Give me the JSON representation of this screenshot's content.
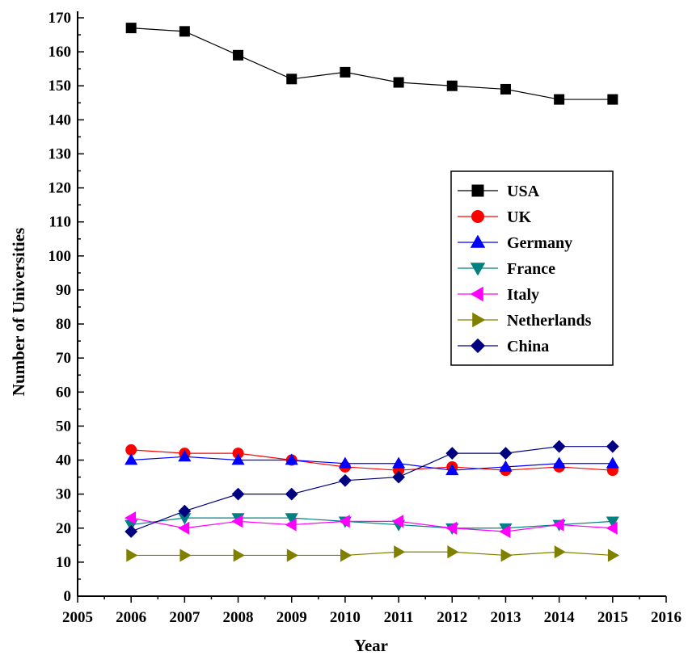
{
  "chart_data": {
    "type": "line",
    "xlabel": "Year",
    "ylabel": "Number of Universities",
    "xlim": [
      2005,
      2016
    ],
    "ylim": [
      0,
      170
    ],
    "x_ticks": [
      "2005",
      "2006",
      "2007",
      "2008",
      "2009",
      "2010",
      "2011",
      "2012",
      "2013",
      "2014",
      "2015",
      "2016"
    ],
    "y_ticks": [
      "0",
      "10",
      "20",
      "30",
      "40",
      "50",
      "60",
      "70",
      "80",
      "90",
      "100",
      "110",
      "120",
      "130",
      "140",
      "150",
      "160",
      "170"
    ],
    "grid": false,
    "legend_position": "right",
    "x": [
      2006,
      2007,
      2008,
      2009,
      2010,
      2011,
      2012,
      2013,
      2014,
      2015
    ],
    "series": [
      {
        "name": "USA",
        "color": "#000000",
        "marker": "square",
        "values": [
          167,
          166,
          159,
          152,
          154,
          151,
          150,
          149,
          146,
          146
        ]
      },
      {
        "name": "UK",
        "color": "#ff0000",
        "marker": "circle",
        "values": [
          43,
          42,
          42,
          40,
          38,
          37,
          38,
          37,
          38,
          37
        ]
      },
      {
        "name": "Germany",
        "color": "#0000ff",
        "marker": "triangle-up",
        "values": [
          40,
          41,
          40,
          40,
          39,
          39,
          37,
          38,
          39,
          39
        ]
      },
      {
        "name": "France",
        "color": "#008080",
        "marker": "triangle-down",
        "values": [
          21,
          23,
          23,
          23,
          22,
          21,
          20,
          20,
          21,
          22
        ]
      },
      {
        "name": "Italy",
        "color": "#ff00ff",
        "marker": "triangle-left",
        "values": [
          23,
          20,
          22,
          21,
          22,
          22,
          20,
          19,
          21,
          20
        ]
      },
      {
        "name": "Netherlands",
        "color": "#808000",
        "marker": "triangle-right",
        "values": [
          12,
          12,
          12,
          12,
          12,
          13,
          13,
          12,
          13,
          12
        ]
      },
      {
        "name": "China",
        "color": "#000080",
        "marker": "diamond",
        "values": [
          19,
          25,
          30,
          30,
          34,
          35,
          42,
          42,
          44,
          44
        ]
      }
    ]
  }
}
